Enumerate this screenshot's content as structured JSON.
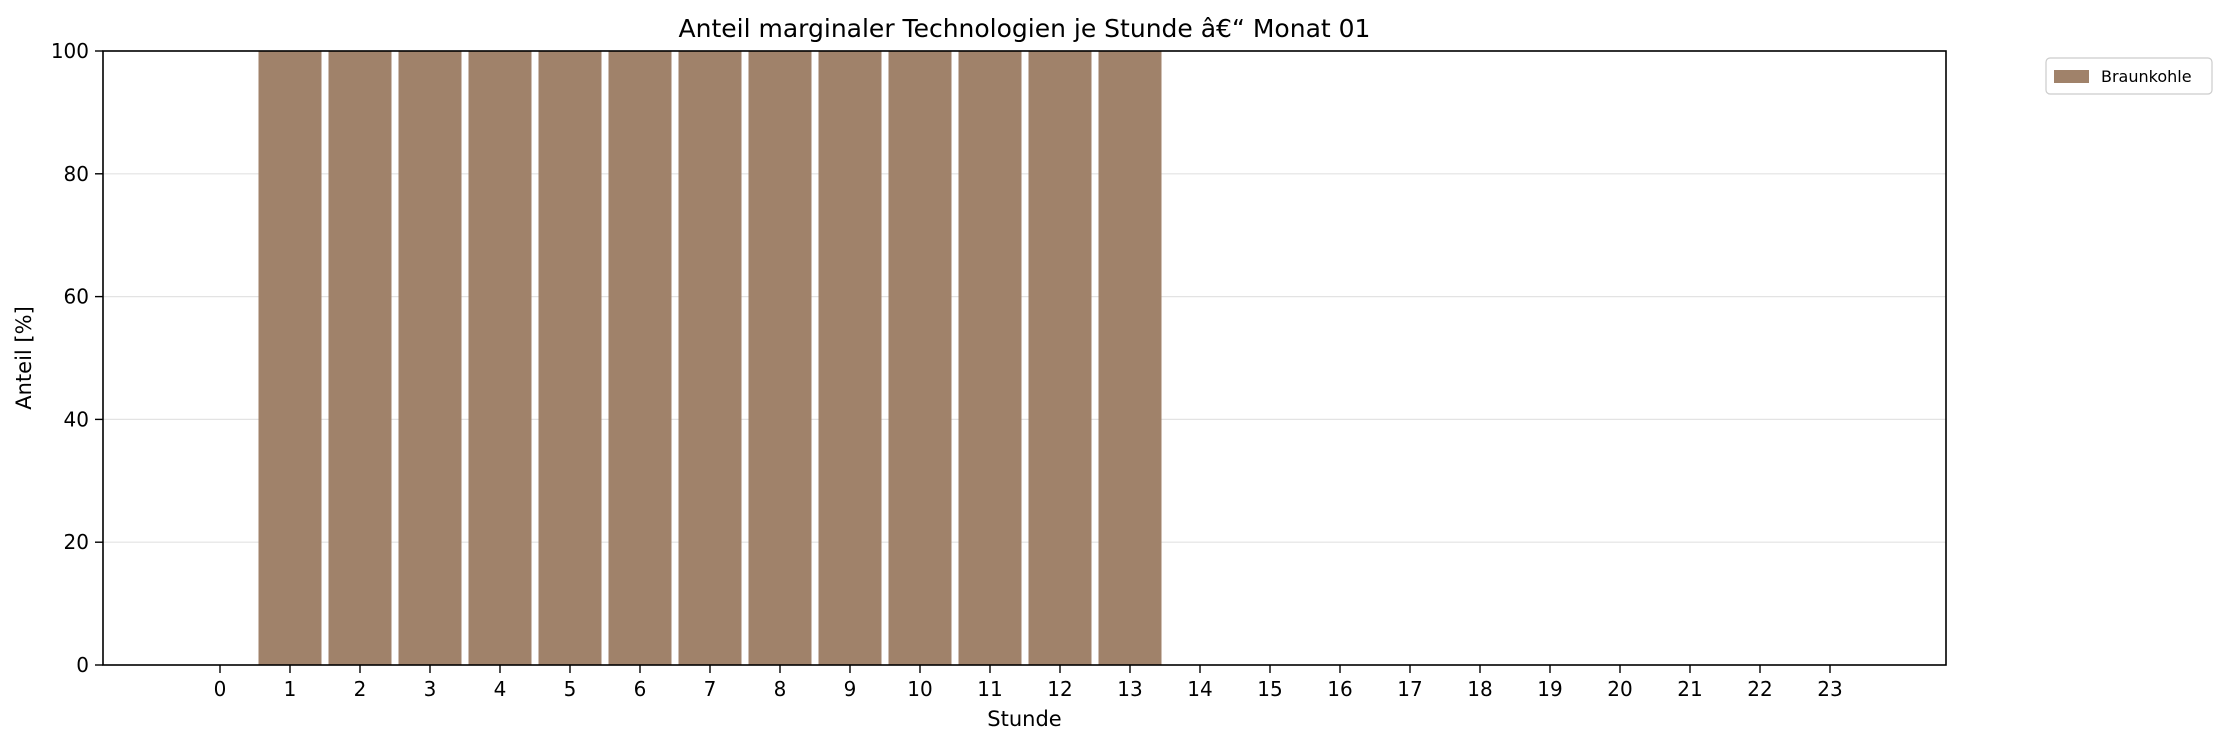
{
  "chart_data": {
    "type": "bar",
    "title": "Anteil marginaler Technologien je Stunde â€“ Monat 01",
    "xlabel": "Stunde",
    "ylabel": "Anteil [%]",
    "categories": [
      "0",
      "1",
      "2",
      "3",
      "4",
      "5",
      "6",
      "7",
      "8",
      "9",
      "10",
      "11",
      "12",
      "13",
      "14",
      "15",
      "16",
      "17",
      "18",
      "19",
      "20",
      "21",
      "22",
      "23"
    ],
    "series": [
      {
        "name": "Braunkohle",
        "color": "#a0826a",
        "values": [
          0,
          100,
          100,
          100,
          100,
          100,
          100,
          100,
          100,
          100,
          100,
          100,
          100,
          100,
          0,
          0,
          0,
          0,
          0,
          0,
          0,
          0,
          0,
          0
        ]
      }
    ],
    "ylim": [
      0,
      100
    ],
    "yticks": [
      0,
      20,
      40,
      60,
      80,
      100
    ],
    "grid": "horizontal",
    "legend_position": "outside-top-right"
  }
}
